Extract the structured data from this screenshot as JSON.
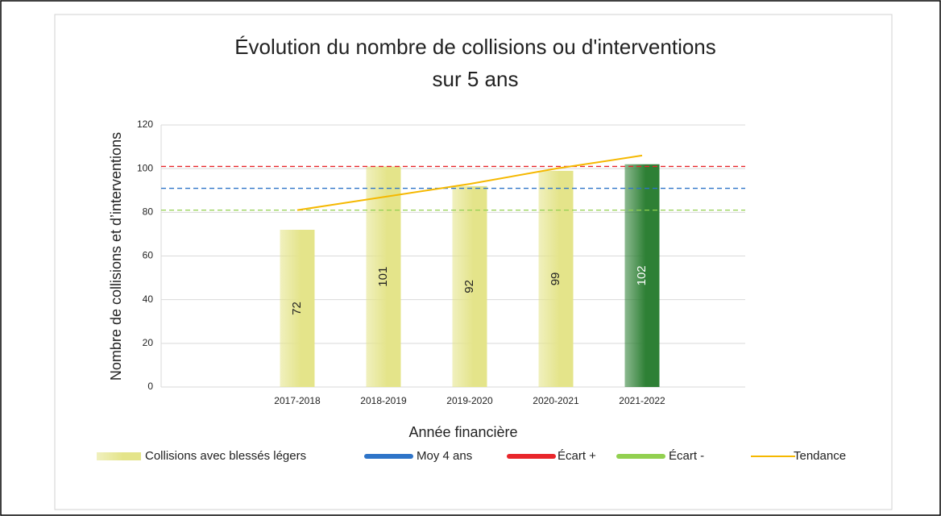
{
  "chart_data": {
    "type": "bar",
    "title": [
      "Évolution du nombre de collisions ou d'interventions",
      "sur 5 ans"
    ],
    "x_label": "Année financière",
    "y_label": "Nombre de collisions et d’interventions",
    "categories": [
      null,
      "2017-2018",
      "2018-2019",
      "2019-2020",
      "2020-2021",
      "2021-2022"
    ],
    "ylim": [
      0,
      120
    ],
    "yticks": [
      0,
      20,
      40,
      60,
      80,
      100,
      120
    ],
    "grid": true,
    "legend": "bottom",
    "series": [
      {
        "name": "Collisions avec blessés légers",
        "type": "bar",
        "color": "#e4e48a",
        "colors": [
          null,
          "#e4e48a",
          "#e4e48a",
          "#e4e48a",
          "#e4e48a",
          "#2e8035"
        ],
        "values": [
          null,
          72,
          101,
          92,
          99,
          102
        ]
      },
      {
        "name": "Moy 4 ans",
        "type": "hline",
        "color": "#2e74c8",
        "value": 91
      },
      {
        "name": "Écart +",
        "type": "hline",
        "color": "#e8262b",
        "value": 101
      },
      {
        "name": "Écart -",
        "type": "hline",
        "color": "#92d050",
        "value": 81
      },
      {
        "name": "Tendance",
        "type": "line",
        "color": "#f5b800",
        "values": [
          null,
          81,
          87,
          93,
          100,
          106
        ]
      }
    ]
  }
}
